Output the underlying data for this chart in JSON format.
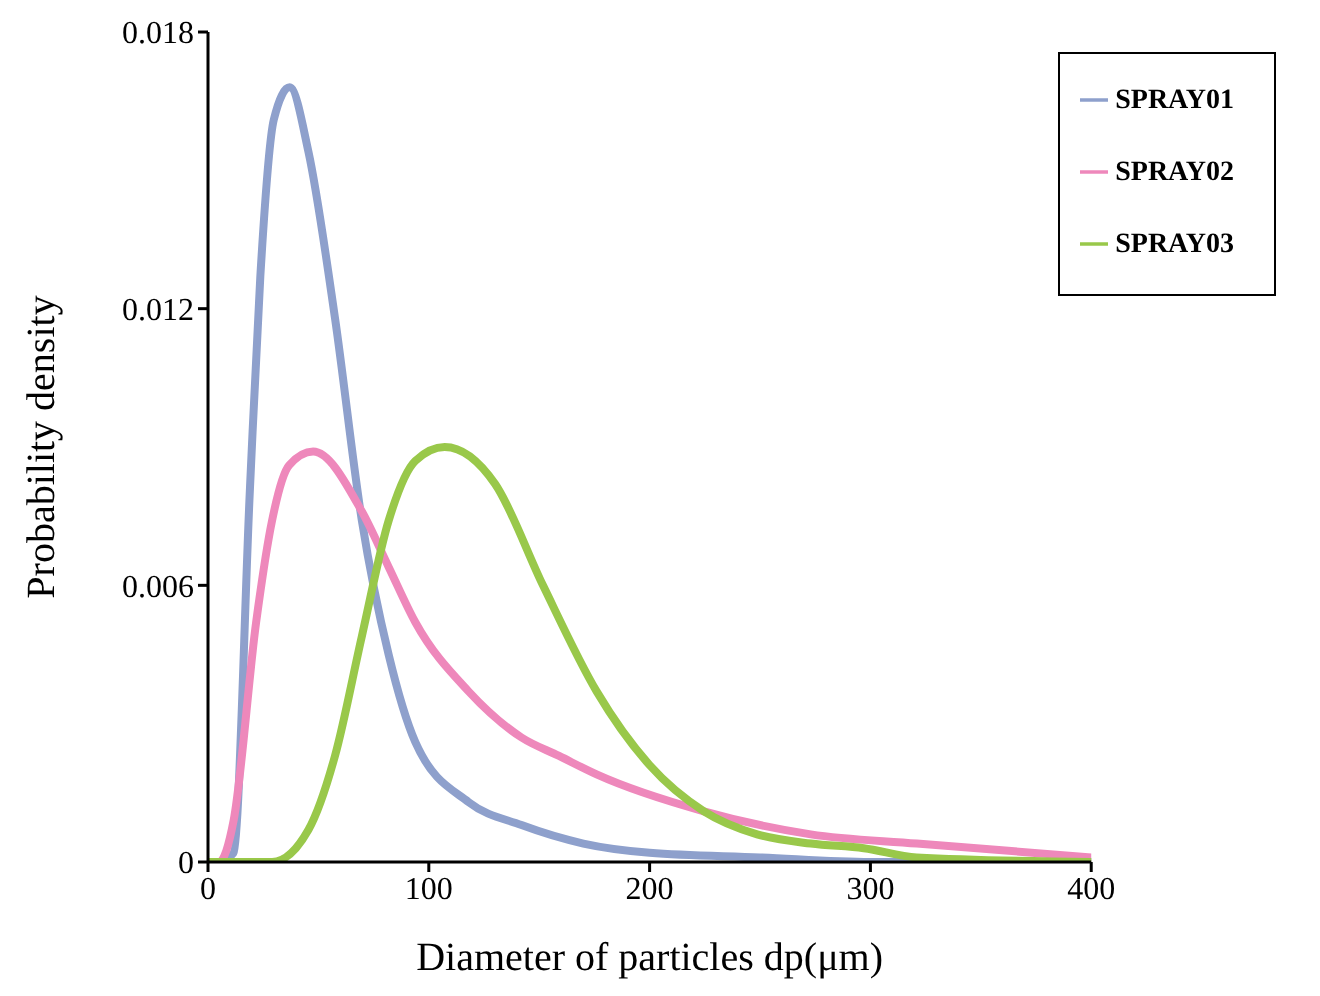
{
  "chart_data": {
    "type": "line",
    "xlabel": "Diameter of particles dp(μm)",
    "ylabel": "Probability density",
    "xlim": [
      0,
      400
    ],
    "xticks": [
      0,
      100,
      200,
      300,
      400
    ],
    "ylim": [
      0,
      0.018
    ],
    "yticks": [
      0,
      0.006,
      0.012,
      0.018
    ],
    "grid": false,
    "legend": "top right",
    "marker": "none",
    "line_style": "solid",
    "series": [
      {
        "name": "SPRAY01",
        "color": "#8ea0cc",
        "x": [
          0,
          5,
          11.6,
          19,
          23.7,
          29.8,
          37,
          45.5,
          57.5,
          69.7,
          81.8,
          93.9,
          118,
          142,
          170,
          200,
          250,
          300,
          400
        ],
        "values": [
          0,
          0,
          0.0002,
          0.0081,
          0.0127,
          0.0161,
          0.0168,
          0.0154,
          0.0118,
          0.0074,
          0.0045,
          0.0026,
          0.0013,
          0.0008,
          0.0004,
          0.0002,
          0.0001,
          0,
          0
        ]
      },
      {
        "name": "SPRAY02",
        "color": "#ee88bb",
        "x": [
          0,
          5,
          11.6,
          21.8,
          29,
          36.7,
          47.6,
          69.7,
          81.8,
          93.9,
          118,
          142,
          159,
          176,
          224.6,
          273,
          321,
          400
        ],
        "values": [
          0,
          0,
          0.0009,
          0.0052,
          0.0074,
          0.0086,
          0.0089,
          0.0076,
          0.0064,
          0.0052,
          0.0037,
          0.0027,
          0.0023,
          0.0019,
          0.0011,
          0.0006,
          0.0004,
          0.0001
        ]
      },
      {
        "name": "SPRAY03",
        "color": "#99c84a",
        "x": [
          0,
          29,
          45.5,
          57.5,
          69.7,
          81.8,
          93.9,
          107.2,
          130,
          151.7,
          176,
          200,
          224.6,
          248.7,
          273,
          297,
          321,
          400
        ],
        "values": [
          0,
          0,
          0.0007,
          0.0023,
          0.0049,
          0.0074,
          0.0087,
          0.009,
          0.0082,
          0.006,
          0.0037,
          0.0021,
          0.0011,
          0.0006,
          0.0004,
          0.0003,
          0.0001,
          0
        ]
      }
    ]
  }
}
